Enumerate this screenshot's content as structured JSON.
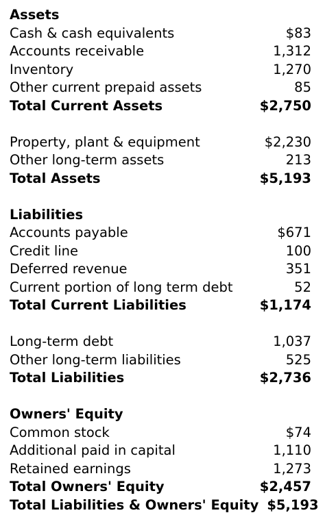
{
  "assets": {
    "heading": "Assets",
    "rows": [
      {
        "label": "Cash & cash equivalents",
        "value": "$83"
      },
      {
        "label": "Accounts receivable",
        "value": "1,312"
      },
      {
        "label": "Inventory",
        "value": "1,270"
      },
      {
        "label": "Other current prepaid assets",
        "value": "85"
      }
    ],
    "total_current": {
      "label": "Total Current Assets",
      "value": "$2,750"
    },
    "long_term_rows": [
      {
        "label": "Property, plant & equipment",
        "value": "$2,230"
      },
      {
        "label": "Other long-term assets",
        "value": "213"
      }
    ],
    "total": {
      "label": "Total Assets",
      "value": "$5,193"
    }
  },
  "liabilities": {
    "heading": "Liabilities",
    "rows": [
      {
        "label": "Accounts payable",
        "value": "$671"
      },
      {
        "label": "Credit line",
        "value": "100"
      },
      {
        "label": "Deferred revenue",
        "value": "351"
      },
      {
        "label": "Current portion of long term debt",
        "value": "52"
      }
    ],
    "total_current": {
      "label": "Total Current Liabilities",
      "value": "$1,174"
    },
    "long_term_rows": [
      {
        "label": "Long-term debt",
        "value": "1,037"
      },
      {
        "label": "Other long-term liabilities",
        "value": "525"
      }
    ],
    "total": {
      "label": "Total Liabilities",
      "value": "$2,736"
    }
  },
  "equity": {
    "heading": "Owners' Equity",
    "rows": [
      {
        "label": "Common stock",
        "value": "$74"
      },
      {
        "label": "Additional paid in capital",
        "value": "1,110"
      },
      {
        "label": "Retained earnings",
        "value": "1,273"
      }
    ],
    "total": {
      "label": "Total Owners' Equity",
      "value": "$2,457"
    },
    "grand_total": {
      "label": "Total Liabilities & Owners' Equity",
      "value": "$5,193"
    }
  }
}
